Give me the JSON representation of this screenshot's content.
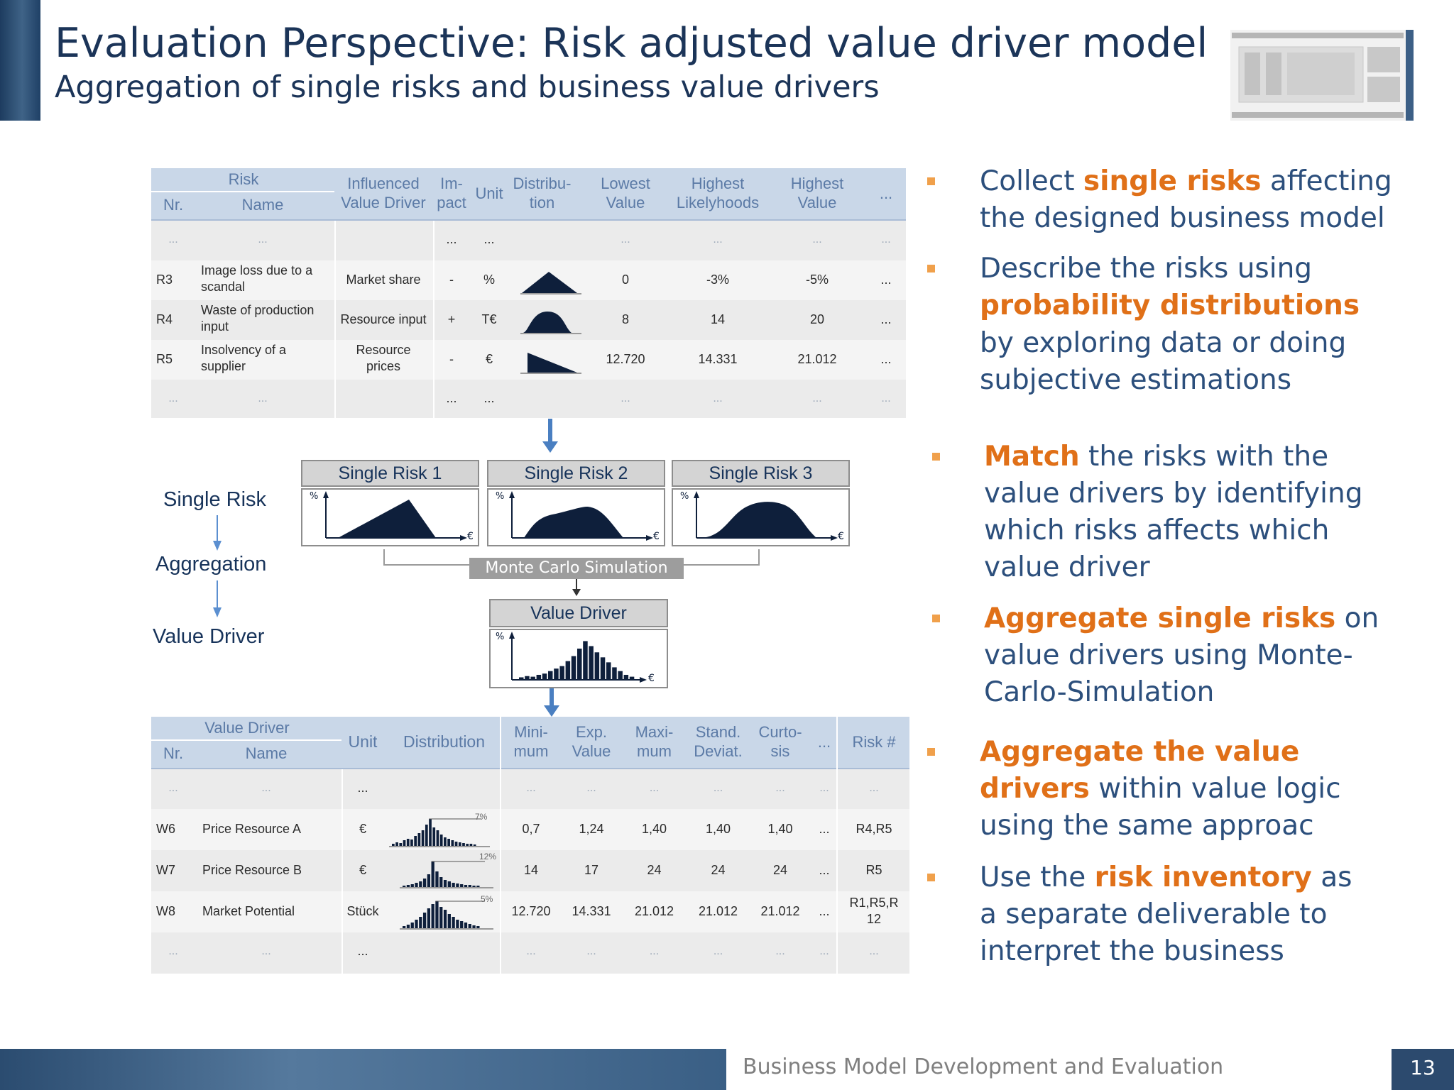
{
  "header": {
    "title": "Evaluation Perspective: Risk adjusted value driver model",
    "subtitle": "Aggregation of single risks and business value drivers"
  },
  "risk_table": {
    "group_header": "Risk",
    "headers": [
      "Nr.",
      "Name",
      "Influenced Value Driver",
      "Im-pact",
      "Unit",
      "Distribu-tion",
      "Lowest Value",
      "Highest Likelyhoods",
      "Highest Value",
      "..."
    ],
    "header_lines": {
      "influenced": [
        "Influenced",
        "Value Driver"
      ],
      "impact": [
        "Im-",
        "pact"
      ],
      "distribution": [
        "Distribu-",
        "tion"
      ],
      "lowest": [
        "Lowest",
        "Value"
      ],
      "likely": [
        "Highest",
        "Likelyhoods"
      ],
      "highest": [
        "Highest",
        "Value"
      ]
    },
    "rows": [
      {
        "nr": "R3",
        "name_lines": [
          "Image loss due to a",
          "scandal"
        ],
        "driver_lines": [
          "Market share"
        ],
        "impact": "-",
        "unit": "%",
        "dist": "triangle",
        "lowest": "0",
        "likely": "-3%",
        "highest": "-5%",
        "more": "..."
      },
      {
        "nr": "R4",
        "name_lines": [
          "Waste of production",
          "input"
        ],
        "driver_lines": [
          "Resource input"
        ],
        "impact": "+",
        "unit": "T€",
        "dist": "bell",
        "lowest": "8",
        "likely": "14",
        "highest": "20",
        "more": "..."
      },
      {
        "nr": "R5",
        "name_lines": [
          "Insolvency of a",
          "supplier"
        ],
        "driver_lines": [
          "Resource",
          "prices"
        ],
        "impact": "-",
        "unit": "€",
        "dist": "decreasing",
        "lowest": "12.720",
        "likely": "14.331",
        "highest": "21.012",
        "more": "..."
      }
    ],
    "ellipsis": "..."
  },
  "diagram": {
    "stages": [
      "Single Risk",
      "Aggregation",
      "Value Driver"
    ],
    "single_risks": [
      "Single Risk 1",
      "Single Risk 2",
      "Single Risk 3"
    ],
    "axis_y": "%",
    "axis_x": "€",
    "simulation_label": "Monte Carlo Simulation",
    "value_driver_box": "Value Driver"
  },
  "value_driver_table": {
    "group_header": "Value Driver",
    "headers": [
      "Nr.",
      "Name",
      "Unit",
      "Distribution",
      "Mini-mum",
      "Exp. Value",
      "Maxi-mum",
      "Stand. Deviat.",
      "Curto-sis",
      "...",
      "Risk #"
    ],
    "header_lines": {
      "min": [
        "Mini-",
        "mum"
      ],
      "exp": [
        "Exp.",
        "Value"
      ],
      "max": [
        "Maxi-",
        "mum"
      ],
      "std": [
        "Stand.",
        "Deviat."
      ],
      "curt": [
        "Curto-",
        "sis"
      ]
    },
    "rows": [
      {
        "nr": "W6",
        "name": "Price Resource A",
        "unit": "€",
        "pct": "7%",
        "min": "0,7",
        "exp": "1,24",
        "max": "1,40",
        "std": "1,40",
        "curt": "1,40",
        "more": "...",
        "risk_lines": [
          "R4,R5"
        ]
      },
      {
        "nr": "W7",
        "name": "Price Resource B",
        "unit": "€",
        "pct": "12%",
        "min": "14",
        "exp": "17",
        "max": "24",
        "std": "24",
        "curt": "24",
        "more": "...",
        "risk_lines": [
          "R5"
        ]
      },
      {
        "nr": "W8",
        "name": "Market Potential",
        "unit": "Stück",
        "pct": "5%",
        "min": "12.720",
        "exp": "14.331",
        "max": "21.012",
        "std": "21.012",
        "curt": "21.012",
        "more": "...",
        "risk_lines": [
          "R1,R5,R",
          "12"
        ]
      }
    ],
    "ellipsis": "..."
  },
  "bullets": [
    {
      "lines": [
        [
          {
            "t": "Collect "
          },
          {
            "t": "single risks",
            "h": true
          },
          {
            "t": " affecting"
          }
        ],
        [
          {
            "t": "the designed business model"
          }
        ]
      ]
    },
    {
      "lines": [
        [
          {
            "t": "Describe the risks using"
          }
        ],
        [
          {
            "t": "probability distributions",
            "h": true
          }
        ],
        [
          {
            "t": "by exploring data or doing"
          }
        ],
        [
          {
            "t": "subjective estimations"
          }
        ]
      ]
    },
    {
      "lines": [
        [
          {
            "t": "Match",
            "h": true
          },
          {
            "t": " the risks with the"
          }
        ],
        [
          {
            "t": "value drivers by identifying"
          }
        ],
        [
          {
            "t": "which risks affects which"
          }
        ],
        [
          {
            "t": "value driver"
          }
        ]
      ]
    },
    {
      "lines": [
        [
          {
            "t": "Aggregate single risks",
            "h": true
          },
          {
            "t": " on"
          }
        ],
        [
          {
            "t": "value drivers using Monte-"
          }
        ],
        [
          {
            "t": "Carlo-Simulation"
          }
        ]
      ]
    },
    {
      "lines": [
        [
          {
            "t": "Aggregate the value",
            "h": true
          }
        ],
        [
          {
            "t": "drivers",
            "h": true
          },
          {
            "t": " within value logic"
          }
        ],
        [
          {
            "t": "using the same approac"
          }
        ]
      ]
    },
    {
      "lines": [
        [
          {
            "t": "Use the "
          },
          {
            "t": "risk inventory",
            "h": true
          },
          {
            "t": " as"
          }
        ],
        [
          {
            "t": "a separate deliverable to"
          }
        ],
        [
          {
            "t": "interpret the business"
          }
        ]
      ]
    }
  ],
  "footer": {
    "text": "Business Model Development and Evaluation",
    "page_number": "13"
  },
  "colors": {
    "title": "#1b3458",
    "accent_orange": "#e07018",
    "bullet_marker": "#f0a04b",
    "table_header": "#c9d7e8",
    "dark_fill": "#0e1f3b"
  }
}
